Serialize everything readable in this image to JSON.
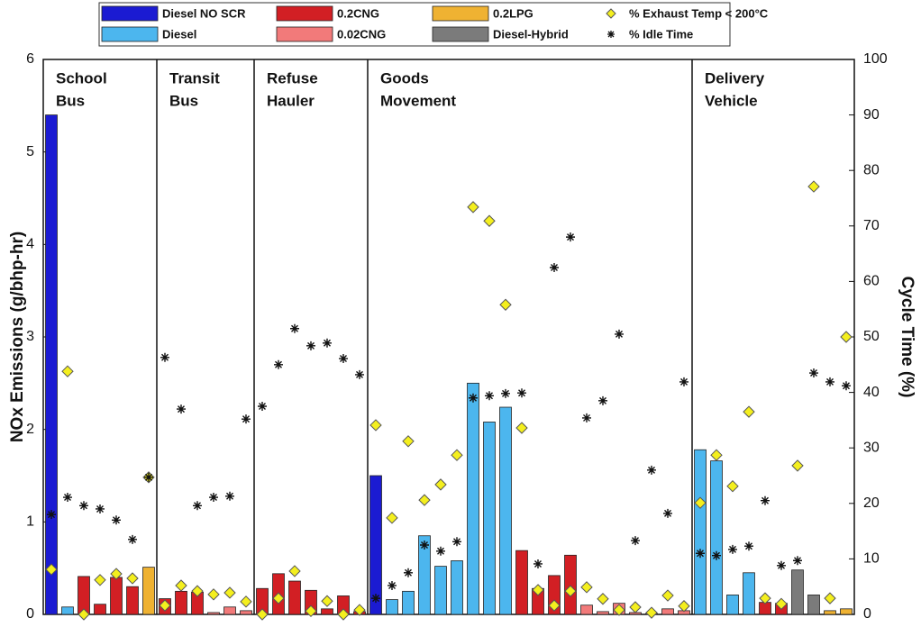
{
  "chart_data": {
    "type": "bar",
    "ylabel": "NOx Emissions (g/bhp-hr)",
    "y2label": "Cycle Time (%)",
    "ylim": [
      0,
      6
    ],
    "yticks": [
      0,
      1,
      2,
      3,
      4,
      5,
      6
    ],
    "y2lim": [
      0,
      100
    ],
    "y2ticks": [
      0,
      10,
      20,
      30,
      40,
      50,
      60,
      70,
      80,
      90,
      100
    ],
    "categories": [
      null,
      null,
      null,
      null,
      null,
      null,
      null,
      null,
      null,
      null,
      null,
      null,
      null,
      null,
      null,
      null,
      null,
      null,
      null,
      null,
      null,
      null,
      null,
      null,
      null,
      null,
      null,
      null,
      null,
      null,
      null,
      null,
      null,
      null,
      null,
      null,
      null,
      null,
      null,
      null,
      null,
      null,
      null,
      null,
      null,
      null,
      null,
      null,
      null,
      null
    ],
    "groups": [
      {
        "label": [
          "School",
          "Bus"
        ],
        "count": 7
      },
      {
        "label": [
          "Transit",
          "Bus"
        ],
        "count": 6
      },
      {
        "label": [
          "Refuse",
          "Hauler"
        ],
        "count": 7
      },
      {
        "label": [
          "Goods",
          "Movement"
        ],
        "count": 20
      },
      {
        "label": [
          "Delivery",
          "Vehicle"
        ],
        "count": 10
      }
    ],
    "series": [
      {
        "name": "Diesel NO SCR",
        "type": "bar",
        "color": "#1b1bd2",
        "values": [
          5.4,
          null,
          null,
          null,
          null,
          null,
          null,
          null,
          null,
          null,
          null,
          null,
          null,
          null,
          null,
          null,
          null,
          null,
          null,
          null,
          1.5,
          null,
          null,
          null,
          null,
          null,
          null,
          null,
          null,
          null,
          null,
          null,
          null,
          null,
          null,
          null,
          null,
          null,
          null,
          null,
          null,
          null,
          null,
          null,
          null,
          null,
          null,
          null,
          null,
          null
        ]
      },
      {
        "name": "Diesel",
        "type": "bar",
        "color": "#4cb6ee",
        "values": [
          null,
          0.08,
          null,
          null,
          null,
          null,
          null,
          null,
          null,
          null,
          null,
          null,
          null,
          null,
          null,
          null,
          null,
          null,
          null,
          null,
          null,
          0.16,
          0.25,
          0.85,
          0.52,
          0.58,
          2.5,
          2.08,
          2.24,
          null,
          null,
          null,
          null,
          null,
          null,
          null,
          null,
          null,
          null,
          null,
          1.78,
          1.66,
          0.21,
          0.45,
          null,
          null,
          null,
          null,
          null,
          null
        ]
      },
      {
        "name": "0.2CNG",
        "type": "bar",
        "color": "#d21f24",
        "values": [
          null,
          null,
          0.41,
          0.11,
          0.4,
          0.3,
          null,
          0.17,
          0.25,
          0.24,
          null,
          null,
          null,
          0.28,
          0.44,
          0.36,
          0.26,
          0.06,
          0.2,
          0.03,
          null,
          null,
          null,
          null,
          null,
          null,
          null,
          null,
          null,
          0.69,
          0.28,
          0.42,
          0.64,
          null,
          null,
          null,
          null,
          null,
          null,
          null,
          null,
          null,
          null,
          null,
          0.13,
          0.12,
          null,
          null,
          null,
          null
        ]
      },
      {
        "name": "0.02CNG",
        "type": "bar",
        "color": "#f27a7a",
        "values": [
          null,
          null,
          null,
          null,
          null,
          null,
          null,
          null,
          null,
          null,
          0.02,
          0.08,
          0.04,
          null,
          null,
          null,
          null,
          null,
          null,
          null,
          null,
          null,
          null,
          null,
          null,
          null,
          null,
          null,
          null,
          null,
          null,
          null,
          null,
          0.1,
          0.03,
          0.12,
          0.02,
          0.01,
          0.06,
          0.04,
          null,
          null,
          null,
          null,
          null,
          null,
          null,
          null,
          null,
          null
        ]
      },
      {
        "name": "0.2LPG",
        "type": "bar",
        "color": "#efb232",
        "values": [
          null,
          null,
          null,
          null,
          null,
          null,
          0.51,
          null,
          null,
          null,
          null,
          null,
          null,
          null,
          null,
          null,
          null,
          null,
          null,
          null,
          null,
          null,
          null,
          null,
          null,
          null,
          null,
          null,
          null,
          null,
          null,
          null,
          null,
          null,
          null,
          null,
          null,
          null,
          null,
          null,
          null,
          null,
          null,
          null,
          null,
          null,
          null,
          null,
          0.04,
          0.06
        ]
      },
      {
        "name": "Diesel-Hybrid",
        "type": "bar",
        "color": "#7b7b7b",
        "values": [
          null,
          null,
          null,
          null,
          null,
          null,
          null,
          null,
          null,
          null,
          null,
          null,
          null,
          null,
          null,
          null,
          null,
          null,
          null,
          null,
          null,
          null,
          null,
          null,
          null,
          null,
          null,
          null,
          null,
          null,
          null,
          null,
          null,
          null,
          null,
          null,
          null,
          null,
          null,
          null,
          null,
          null,
          null,
          null,
          null,
          null,
          0.48,
          0.21,
          null,
          null
        ]
      },
      {
        "name": "% Exhaust Temp < 200°C",
        "type": "scatter",
        "marker": "diamond",
        "axis": "y2",
        "color": "#f4ef1e",
        "values": [
          8.1,
          43.8,
          0,
          6.2,
          7.3,
          6.5,
          24.7,
          1.6,
          5.2,
          4.2,
          3.6,
          3.9,
          2.3,
          0,
          2.9,
          7.8,
          0.6,
          2.4,
          0,
          0.8,
          34.1,
          17.4,
          31.2,
          20.6,
          23.4,
          28.7,
          73.4,
          70.9,
          55.8,
          33.6,
          4.4,
          1.6,
          4.2,
          4.9,
          2.8,
          0.8,
          1.3,
          0.3,
          3.4,
          1.5,
          20.1,
          28.7,
          23.1,
          36.5,
          2.9,
          1.9,
          26.8,
          77.1,
          2.9,
          50.0
        ]
      },
      {
        "name": "% Idle Time",
        "type": "scatter",
        "marker": "star",
        "axis": "y2",
        "color": "#111111",
        "values": [
          18.0,
          21.1,
          19.6,
          19.0,
          17.0,
          13.5,
          24.7,
          46.3,
          37.0,
          19.6,
          21.1,
          21.3,
          35.2,
          37.5,
          45.0,
          51.5,
          48.4,
          48.9,
          46.1,
          43.2,
          2.9,
          5.2,
          7.5,
          12.5,
          11.4,
          13.1,
          39.0,
          39.4,
          39.8,
          39.9,
          9.1,
          62.5,
          68.0,
          35.4,
          38.5,
          50.5,
          13.3,
          26.0,
          18.2,
          41.9,
          11.0,
          10.6,
          11.7,
          12.3,
          20.5,
          8.8,
          9.7,
          43.5,
          41.9,
          41.2
        ]
      }
    ]
  }
}
